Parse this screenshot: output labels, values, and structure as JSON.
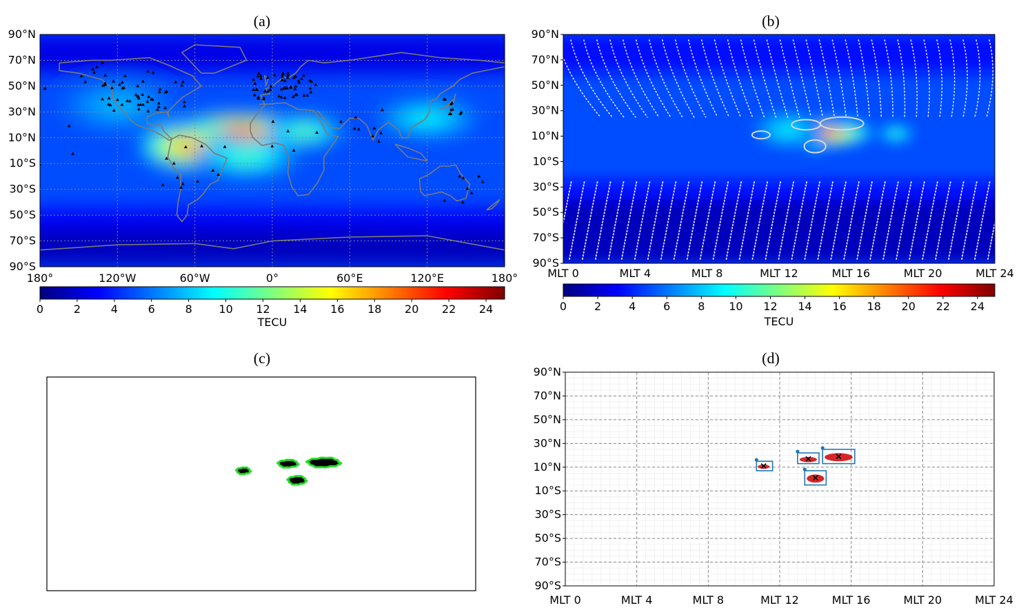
{
  "colors": {
    "jet": [
      "#00007f",
      "#0000ff",
      "#007fff",
      "#00ffff",
      "#7fff7f",
      "#ffff00",
      "#ff7f00",
      "#ff0000",
      "#7f0000"
    ],
    "coastline": "#7a7a7a",
    "station": "#000000",
    "contour": "#d8d8d8",
    "blob_fill": "#000000",
    "blob_edge": "#22dd22",
    "cluster_point": "#d62728",
    "cluster_box": "#1f77b4",
    "grid": "#888888"
  },
  "panels": {
    "a": {
      "label": "(a)",
      "projection": "geographic longitude / latitude",
      "features": [
        "tec-map",
        "coastlines",
        "gnss-stations",
        "dotted-grid"
      ]
    },
    "b": {
      "label": "(b)",
      "projection": "magnetic local time / magnetic latitude",
      "features": [
        "tec-map",
        "contours"
      ]
    },
    "c": {
      "label": "(c)",
      "features": [
        "binary-mask",
        "green-outlines"
      ]
    },
    "d": {
      "label": "(d)",
      "features": [
        "clustered-points",
        "bounding-boxes",
        "centroid-markers",
        "dashed-grid"
      ]
    }
  },
  "chart_data": [
    {
      "type": "heatmap",
      "panel": "a",
      "title": "(a)",
      "xlabel": "",
      "ylabel": "",
      "xlim": [
        -180,
        180
      ],
      "ylim": [
        -90,
        90
      ],
      "x_tick_values": [
        -180,
        -120,
        -60,
        0,
        60,
        120,
        180
      ],
      "x_ticks": [
        "180°",
        "120°W",
        "60°W",
        "0°",
        "60°E",
        "120°E",
        "180°"
      ],
      "y_tick_values": [
        90,
        70,
        50,
        30,
        10,
        -10,
        -30,
        -50,
        -70,
        -90
      ],
      "y_ticks": [
        "90°N",
        "70°N",
        "50°N",
        "30°N",
        "10°N",
        "10°S",
        "30°S",
        "50°S",
        "70°S",
        "90°S"
      ],
      "grid": true,
      "colorbar": {
        "label": "TECU",
        "range": [
          0,
          25
        ],
        "tick_values": [
          0,
          2,
          4,
          6,
          8,
          10,
          12,
          14,
          16,
          18,
          20,
          22,
          24
        ],
        "ticks": [
          "0",
          "2",
          "4",
          "6",
          "8",
          "10",
          "12",
          "14",
          "16",
          "18",
          "20",
          "22",
          "24"
        ]
      },
      "background_tecu": 5,
      "hotspots": [
        {
          "lon": -25,
          "lat": 15,
          "lon_width": 55,
          "lat_width": 14,
          "tecu": 17
        },
        {
          "lon": -65,
          "lat": 3,
          "lon_width": 38,
          "lat_width": 18,
          "tecu": 15
        },
        {
          "lon": 25,
          "lat": 15,
          "lon_width": 30,
          "lat_width": 12,
          "tecu": 8
        },
        {
          "lon": -20,
          "lat": -5,
          "lon_width": 40,
          "lat_width": 15,
          "tecu": 7
        },
        {
          "lon": 120,
          "lat": 25,
          "lon_width": 40,
          "lat_width": 15,
          "tecu": 5
        },
        {
          "lon": -120,
          "lat": 35,
          "lon_width": 45,
          "lat_width": 20,
          "tecu": 3
        }
      ]
    },
    {
      "type": "heatmap",
      "panel": "b",
      "title": "(b)",
      "xlabel": "",
      "ylabel": "",
      "xlim": [
        0,
        24
      ],
      "ylim": [
        -90,
        90
      ],
      "x_tick_values": [
        0,
        4,
        8,
        12,
        16,
        20,
        24
      ],
      "x_ticks": [
        "MLT 0",
        "MLT 4",
        "MLT 8",
        "MLT 12",
        "MLT 16",
        "MLT 20",
        "MLT 24"
      ],
      "y_tick_values": [
        90,
        70,
        50,
        30,
        10,
        -10,
        -30,
        -50,
        -70,
        -90
      ],
      "y_ticks": [
        "90°N",
        "70°N",
        "50°N",
        "30°N",
        "10°N",
        "10°S",
        "30°S",
        "50°S",
        "70°S",
        "90°S"
      ],
      "grid": false,
      "colorbar": {
        "label": "TECU",
        "range": [
          0,
          25
        ],
        "tick_values": [
          0,
          2,
          4,
          6,
          8,
          10,
          12,
          14,
          16,
          18,
          20,
          22,
          24
        ],
        "ticks": [
          "0",
          "2",
          "4",
          "6",
          "8",
          "10",
          "12",
          "14",
          "16",
          "18",
          "20",
          "22",
          "24"
        ]
      },
      "background_tecu": 5,
      "hotspots": [
        {
          "mlt": 14.5,
          "lat": 13,
          "mlt_width": 2.7,
          "lat_width": 11,
          "tecu": 16
        },
        {
          "mlt": 15.8,
          "lat": 19,
          "mlt_width": 1.0,
          "lat_width": 5,
          "tecu": 5
        },
        {
          "mlt": 14.0,
          "lat": 3,
          "mlt_width": 0.8,
          "lat_width": 6,
          "tecu": 4
        },
        {
          "mlt": 18.5,
          "lat": 12,
          "mlt_width": 1.0,
          "lat_width": 7,
          "tecu": 6
        },
        {
          "mlt": 12.5,
          "lat": 15,
          "mlt_width": 2.0,
          "lat_width": 15,
          "tecu": 4
        }
      ],
      "contours": [
        {
          "mlt": 11.0,
          "lat": 11,
          "mlt_r": 0.5,
          "lat_r": 3
        },
        {
          "mlt": 13.5,
          "lat": 19,
          "mlt_r": 0.8,
          "lat_r": 4
        },
        {
          "mlt": 15.5,
          "lat": 20,
          "mlt_r": 1.2,
          "lat_r": 5
        },
        {
          "mlt": 14.0,
          "lat": 2,
          "mlt_r": 0.6,
          "lat_r": 5
        }
      ]
    },
    {
      "type": "scatter",
      "panel": "c",
      "title": "(c)",
      "xlabel": "",
      "ylabel": "",
      "xlim": [
        0,
        24
      ],
      "ylim": [
        -90,
        90
      ],
      "axis_labels_shown": false,
      "grid": false,
      "blobs": [
        {
          "mlt": 11.0,
          "lat": 11,
          "mlt_r": 0.38,
          "lat_r": 2.8
        },
        {
          "mlt": 13.5,
          "lat": 17,
          "mlt_r": 0.55,
          "lat_r": 3.2
        },
        {
          "mlt": 15.5,
          "lat": 18,
          "mlt_r": 0.9,
          "lat_r": 4.0
        },
        {
          "mlt": 14.0,
          "lat": 3,
          "mlt_r": 0.5,
          "lat_r": 3.6
        }
      ]
    },
    {
      "type": "scatter",
      "panel": "d",
      "title": "(d)",
      "xlabel": "",
      "ylabel": "",
      "xlim": [
        0,
        24
      ],
      "ylim": [
        -90,
        90
      ],
      "x_tick_values": [
        0,
        4,
        8,
        12,
        16,
        20,
        24
      ],
      "x_ticks": [
        "MLT 0",
        "MLT 4",
        "MLT 8",
        "MLT 12",
        "MLT 16",
        "MLT 20",
        "MLT 24"
      ],
      "y_tick_values": [
        90,
        70,
        50,
        30,
        10,
        -10,
        -30,
        -50,
        -70,
        -90
      ],
      "y_ticks": [
        "90°N",
        "70°N",
        "50°N",
        "30°N",
        "10°N",
        "10°S",
        "30°S",
        "50°S",
        "70°S",
        "90°S"
      ],
      "grid": true,
      "clusters": [
        {
          "box": {
            "mlt0": 10.7,
            "mlt1": 11.6,
            "lat0": 7,
            "lat1": 15
          },
          "centroid": {
            "mlt": 11.1,
            "lat": 11
          }
        },
        {
          "box": {
            "mlt0": 13.0,
            "mlt1": 14.2,
            "lat0": 13,
            "lat1": 22
          },
          "centroid": {
            "mlt": 13.6,
            "lat": 17
          }
        },
        {
          "box": {
            "mlt0": 14.4,
            "mlt1": 16.2,
            "lat0": 13,
            "lat1": 25
          },
          "centroid": {
            "mlt": 15.3,
            "lat": 19
          }
        },
        {
          "box": {
            "mlt0": 13.4,
            "mlt1": 14.6,
            "lat0": -5,
            "lat1": 7
          },
          "centroid": {
            "mlt": 14.0,
            "lat": 1
          }
        }
      ]
    }
  ]
}
